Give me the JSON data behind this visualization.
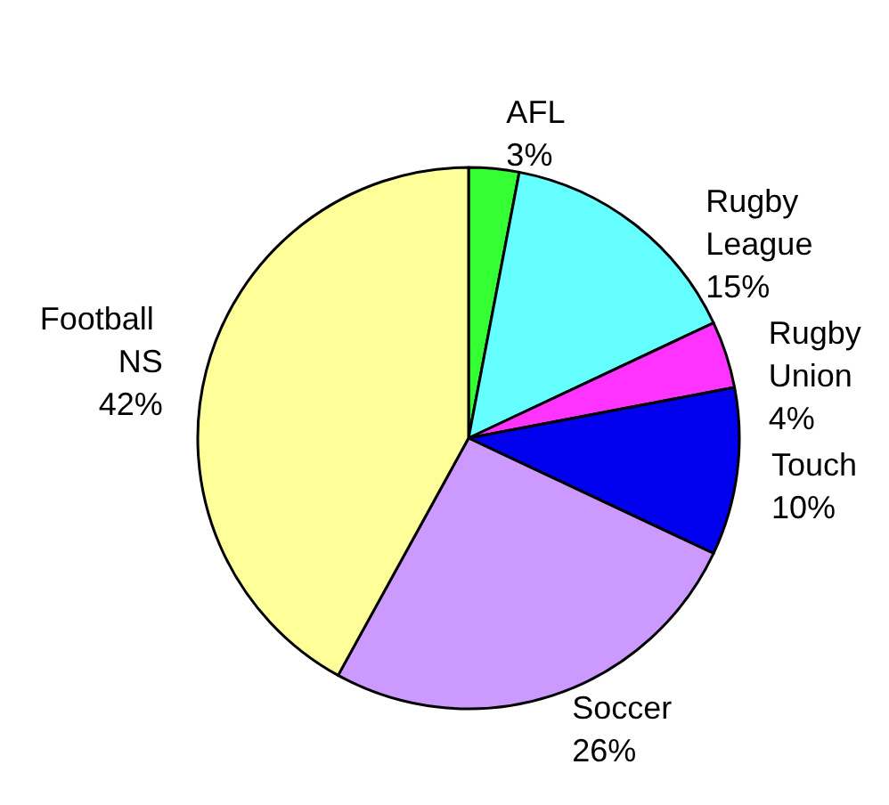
{
  "chart_data": {
    "type": "pie",
    "categories": [
      "AFL",
      "Rugby League",
      "Rugby Union",
      "Touch",
      "Soccer",
      "Football NS"
    ],
    "values": [
      3,
      15,
      4,
      10,
      26,
      42
    ],
    "value_labels": [
      "3%",
      "15%",
      "4%",
      "10%",
      "26%",
      "42%"
    ],
    "colors": [
      "#33ff33",
      "#66ffff",
      "#ff33ff",
      "#0000ee",
      "#cc99ff",
      "#ffff99"
    ],
    "legend": false
  }
}
